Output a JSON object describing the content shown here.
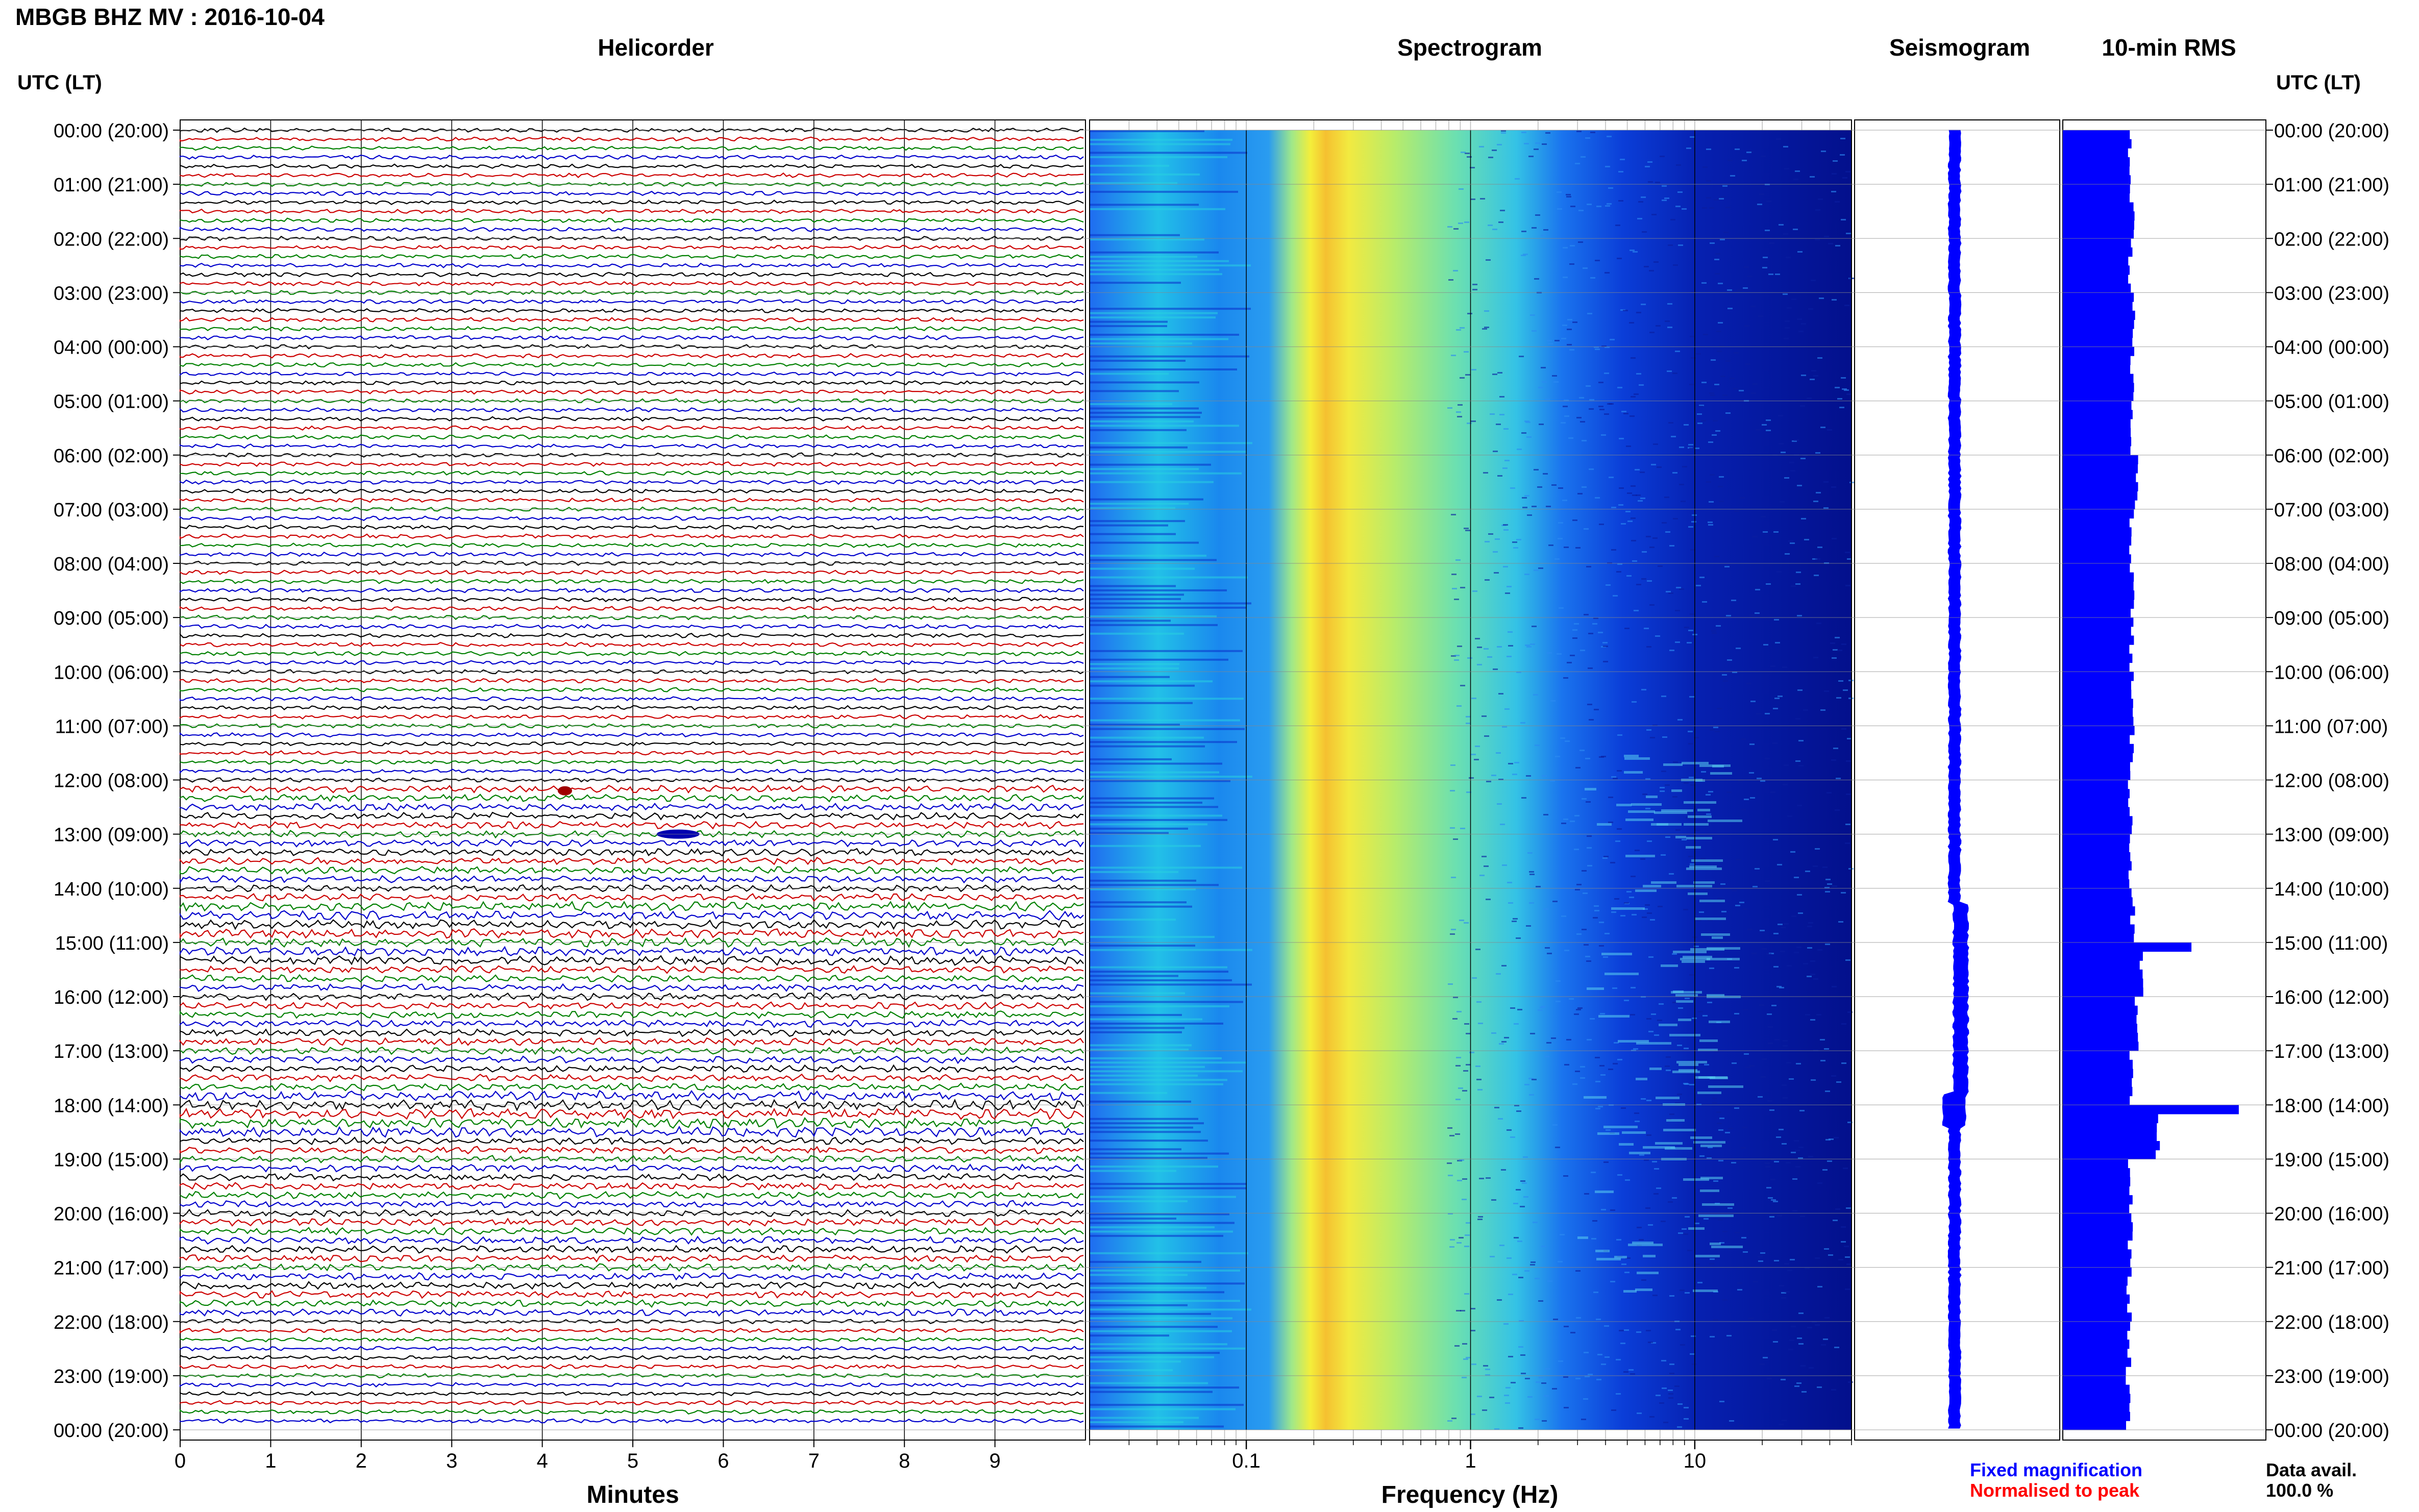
{
  "header": {
    "title": "MBGB BHZ MV : 2016-10-04"
  },
  "panels": {
    "helicorder": "Helicorder",
    "spectrogram": "Spectrogram",
    "seismogram": "Seismogram",
    "rms": "10-min RMS"
  },
  "axis": {
    "utc_label": "UTC (LT)",
    "minutes_label": "Minutes",
    "frequency_label": "Frequency (Hz)"
  },
  "legend": {
    "fixed": "Fixed magnification",
    "normalised": "Normalised to peak"
  },
  "availability": {
    "label": "Data avail.",
    "value": "100.0 %"
  },
  "colors": {
    "trace_cycle": [
      "#000000",
      "#cc0000",
      "#008000",
      "#0000cc"
    ],
    "fixed": "#0000ff",
    "normalised": "#ff0000",
    "rms_bar": "#0000ff"
  },
  "chart_data": {
    "type": "heatmap",
    "time_ticks": [
      "00:00 (20:00)",
      "01:00 (21:00)",
      "02:00 (22:00)",
      "03:00 (23:00)",
      "04:00 (00:00)",
      "05:00 (01:00)",
      "06:00 (02:00)",
      "07:00 (03:00)",
      "08:00 (04:00)",
      "09:00 (05:00)",
      "10:00 (06:00)",
      "11:00 (07:00)",
      "12:00 (08:00)",
      "13:00 (09:00)",
      "14:00 (10:00)",
      "15:00 (11:00)",
      "16:00 (12:00)",
      "17:00 (13:00)",
      "18:00 (14:00)",
      "19:00 (15:00)",
      "20:00 (16:00)",
      "21:00 (17:00)",
      "22:00 (18:00)",
      "23:00 (19:00)",
      "00:00 (20:00)"
    ],
    "minute_ticks": [
      "0",
      "1",
      "2",
      "3",
      "4",
      "5",
      "6",
      "7",
      "8",
      "9"
    ],
    "minutes_range": [
      0,
      10
    ],
    "frequency_ticks": [
      "0.1",
      "1",
      "10"
    ],
    "frequency_range_hz": [
      0.02,
      50
    ],
    "frequency_scale": "log",
    "helicorder_rows": 144,
    "rms_hourly_level": [
      1.0,
      1.02,
      1.0,
      1.05,
      1.02,
      1.03,
      1.08,
      1.02,
      1.03,
      1.02,
      1.01,
      1.02,
      1.0,
      1.01,
      1.03,
      1.15,
      1.08,
      1.0,
      1.4,
      1.0,
      1.0,
      0.98,
      0.97,
      0.96
    ],
    "rms_range": [
      0,
      3
    ]
  }
}
